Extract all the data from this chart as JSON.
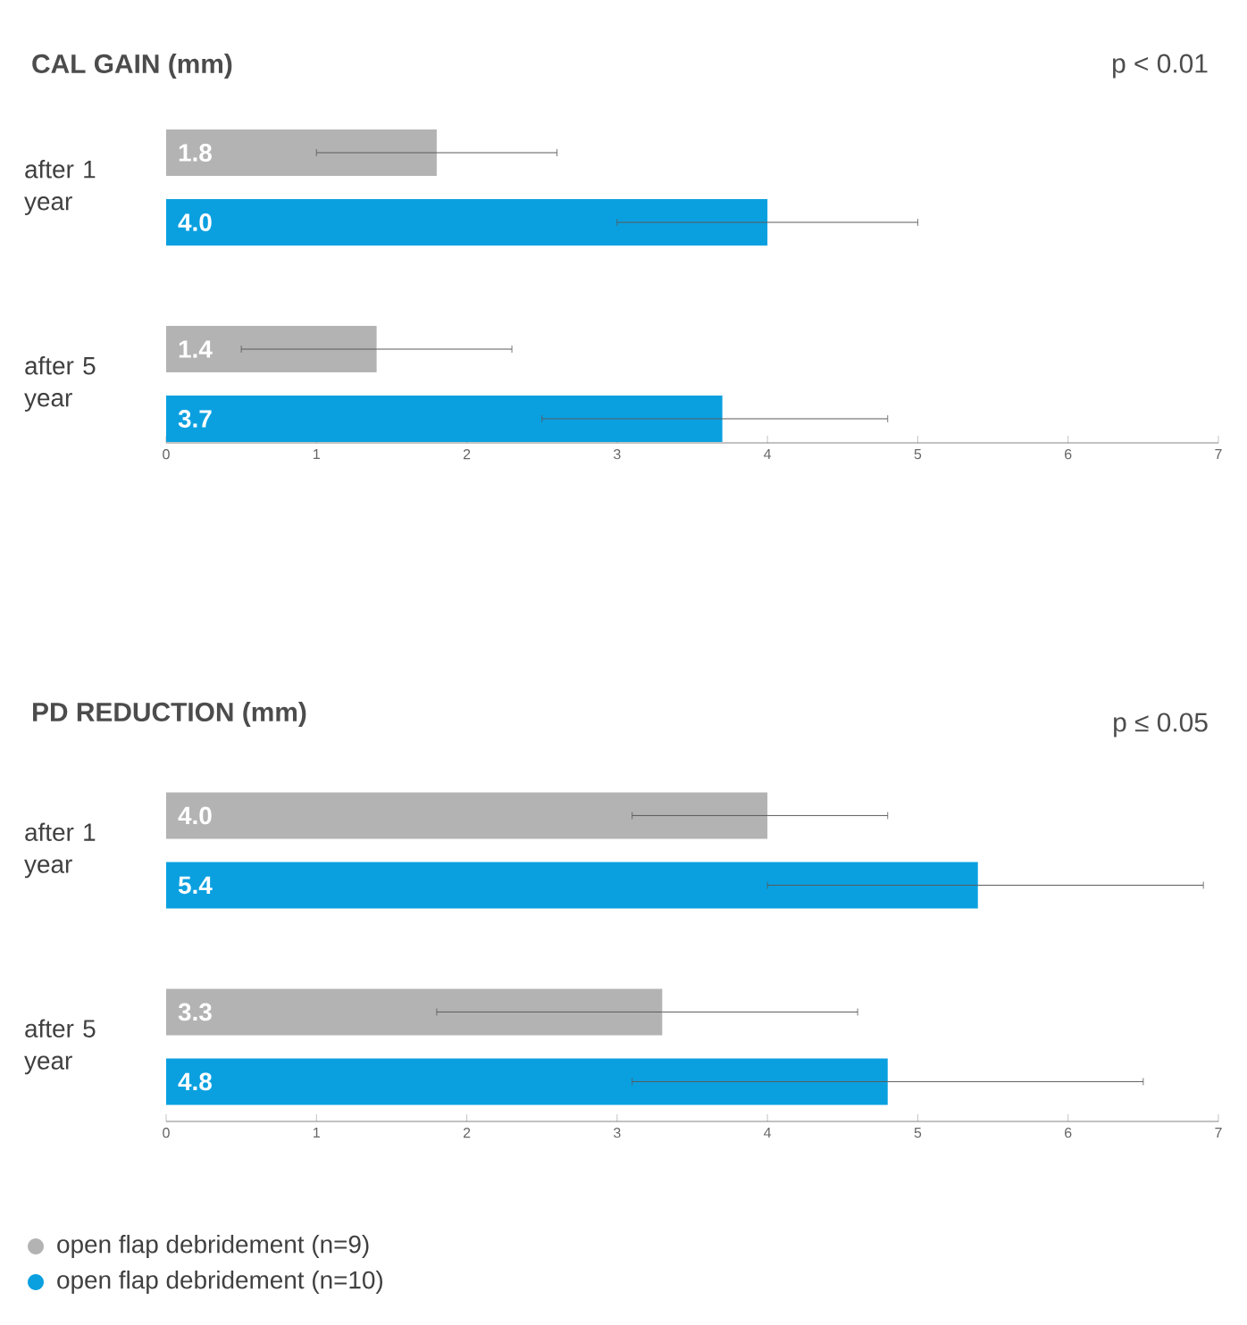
{
  "chart_data": [
    {
      "type": "bar",
      "orientation": "horizontal",
      "title": "CAL GAIN (mm)",
      "annotations": [
        "p < 0.01"
      ],
      "categories": [
        "after 1 year",
        "after 5 year"
      ],
      "series": [
        {
          "color": "#b3b3b3",
          "values": [
            1.8,
            1.4
          ],
          "value_labels": [
            "1.8",
            "1.4"
          ],
          "errors": [
            [
              1.0,
              2.6
            ],
            [
              0.5,
              2.3
            ]
          ]
        },
        {
          "color": "#0aa0e0",
          "values": [
            4.0,
            3.7
          ],
          "value_labels": [
            "4.0",
            "3.7"
          ],
          "errors": [
            [
              3.0,
              5.0
            ],
            [
              2.5,
              4.8
            ]
          ]
        }
      ],
      "xlim": [
        0,
        7
      ],
      "xticks": [
        0,
        1,
        2,
        3,
        4,
        5,
        6,
        7
      ]
    },
    {
      "type": "bar",
      "orientation": "horizontal",
      "title": "PD REDUCTION (mm)",
      "annotations": [
        "p ≤  0.05"
      ],
      "categories": [
        "after 1 year",
        "after 5 year"
      ],
      "series": [
        {
          "name": "open flap debridement (n=9)",
          "color": "#b3b3b3",
          "values": [
            4.0,
            3.3
          ],
          "value_labels": [
            "4.0",
            "3.3"
          ],
          "errors": [
            [
              3.1,
              4.8
            ],
            [
              1.8,
              4.6
            ]
          ]
        },
        {
          "name": "open flap debridement (n=10)",
          "color": "#0aa0e0",
          "values": [
            5.4,
            4.8
          ],
          "value_labels": [
            "5.4",
            "4.8"
          ],
          "errors": [
            [
              4.0,
              6.9
            ],
            [
              3.1,
              6.5
            ]
          ]
        }
      ],
      "xlim": [
        0,
        7
      ],
      "xticks": [
        0,
        1,
        2,
        3,
        4,
        5,
        6,
        7
      ],
      "legend": "bottom"
    }
  ]
}
